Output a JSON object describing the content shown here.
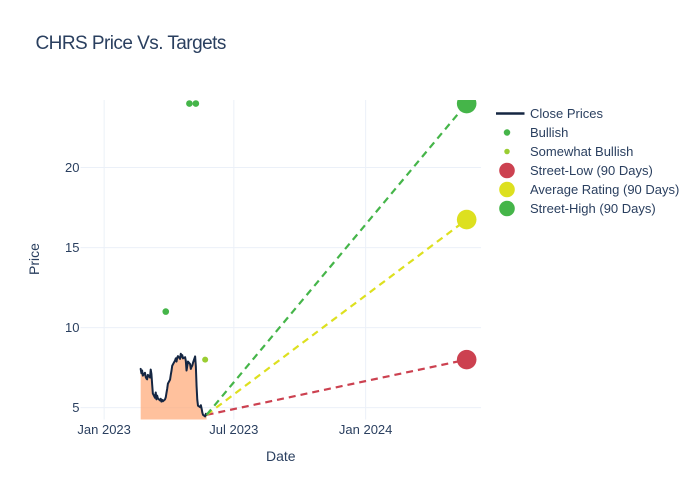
{
  "colors": {
    "background": "#ffffff",
    "text": "#2a3f5f",
    "grid": "#ebf0f8",
    "close_line": "#152642",
    "close_fill": "rgba(255,166,116,0.7)",
    "bullish": "#45b549",
    "somewhat_bullish": "#9acd32",
    "street_low": "#cc4150",
    "average_rating": "#dde01f",
    "street_high": "#45b549"
  },
  "chart_data": {
    "type": "line",
    "title": "CHRS Price Vs. Targets",
    "xlabel": "Date",
    "ylabel": "Price",
    "grid": true,
    "legend_position": "right",
    "x_range": [
      "2022-11-29T12:00:00Z",
      "2024-06-10T12:00:00Z"
    ],
    "y_range": [
      4.26,
      24.22
    ],
    "x_ticks": [
      {
        "label": "Jan 2023",
        "date": "2023-01-01"
      },
      {
        "label": "Jul 2023",
        "date": "2023-07-01"
      },
      {
        "label": "Jan 2024",
        "date": "2024-01-01"
      }
    ],
    "y_ticks": [
      {
        "label": "5",
        "value": 5
      },
      {
        "label": "10",
        "value": 10
      },
      {
        "label": "15",
        "value": 15
      },
      {
        "label": "20",
        "value": 20
      }
    ],
    "series": [
      {
        "name": "Close Prices",
        "kind": "line_filled_area",
        "color_key": "close_line",
        "fill_color_key": "close_fill",
        "line_width": 2,
        "points": [
          [
            "2023-02-21",
            7.42
          ],
          [
            "2023-02-22",
            7.15
          ],
          [
            "2023-02-23",
            7.32
          ],
          [
            "2023-02-24",
            7.0
          ],
          [
            "2023-02-27",
            7.18
          ],
          [
            "2023-02-28",
            6.92
          ],
          [
            "2023-03-01",
            6.82
          ],
          [
            "2023-03-02",
            6.77
          ],
          [
            "2023-03-03",
            7.05
          ],
          [
            "2023-03-06",
            6.88
          ],
          [
            "2023-03-07",
            7.38
          ],
          [
            "2023-03-08",
            7.1
          ],
          [
            "2023-03-09",
            6.45
          ],
          [
            "2023-03-10",
            5.88
          ],
          [
            "2023-03-13",
            5.62
          ],
          [
            "2023-03-14",
            5.95
          ],
          [
            "2023-03-15",
            5.52
          ],
          [
            "2023-03-16",
            5.75
          ],
          [
            "2023-03-17",
            5.58
          ],
          [
            "2023-03-20",
            5.45
          ],
          [
            "2023-03-21",
            5.55
          ],
          [
            "2023-03-22",
            5.38
          ],
          [
            "2023-03-23",
            5.48
          ],
          [
            "2023-03-24",
            5.4
          ],
          [
            "2023-03-27",
            5.52
          ],
          [
            "2023-03-28",
            5.65
          ],
          [
            "2023-03-29",
            5.92
          ],
          [
            "2023-03-30",
            6.18
          ],
          [
            "2023-03-31",
            6.5
          ],
          [
            "2023-04-03",
            6.75
          ],
          [
            "2023-04-04",
            7.05
          ],
          [
            "2023-04-05",
            7.3
          ],
          [
            "2023-04-06",
            7.62
          ],
          [
            "2023-04-10",
            7.95
          ],
          [
            "2023-04-11",
            8.08
          ],
          [
            "2023-04-12",
            7.88
          ],
          [
            "2023-04-13",
            8.12
          ],
          [
            "2023-04-14",
            8.22
          ],
          [
            "2023-04-17",
            8.05
          ],
          [
            "2023-04-18",
            8.37
          ],
          [
            "2023-04-19",
            8.18
          ],
          [
            "2023-04-20",
            8.28
          ],
          [
            "2023-04-21",
            8.08
          ],
          [
            "2023-04-24",
            8.15
          ],
          [
            "2023-04-25",
            7.92
          ],
          [
            "2023-04-26",
            7.32
          ],
          [
            "2023-04-27",
            7.6
          ],
          [
            "2023-04-28",
            7.88
          ],
          [
            "2023-05-01",
            7.72
          ],
          [
            "2023-05-02",
            7.42
          ],
          [
            "2023-05-03",
            7.55
          ],
          [
            "2023-05-04",
            7.62
          ],
          [
            "2023-05-05",
            7.8
          ],
          [
            "2023-05-08",
            8.2
          ],
          [
            "2023-05-09",
            7.58
          ],
          [
            "2023-05-10",
            6.35
          ],
          [
            "2023-05-11",
            5.5
          ],
          [
            "2023-05-12",
            5.12
          ],
          [
            "2023-05-15",
            5.03
          ],
          [
            "2023-05-16",
            5.15
          ],
          [
            "2023-05-17",
            4.95
          ],
          [
            "2023-05-18",
            4.7
          ],
          [
            "2023-05-19",
            4.55
          ],
          [
            "2023-05-22",
            4.45
          ],
          [
            "2023-05-23",
            4.62
          ],
          [
            "2023-05-24",
            4.55
          ]
        ]
      },
      {
        "name": "Bullish",
        "kind": "scatter",
        "color_key": "bullish",
        "marker_size": 6.6,
        "points": [
          [
            "2023-03-28",
            11.0
          ],
          [
            "2023-04-30",
            24.0
          ],
          [
            "2023-05-09",
            24.0
          ]
        ]
      },
      {
        "name": "Somewhat Bullish",
        "kind": "scatter",
        "color_key": "somewhat_bullish",
        "marker_size": 6.0,
        "points": [
          [
            "2023-05-22",
            8.0
          ]
        ]
      },
      {
        "name": "Street-Low (90 Days)",
        "kind": "dashed_target",
        "color_key": "street_low",
        "line_width": 2.2,
        "dash": [
          7,
          5
        ],
        "marker_size": 19.6,
        "points": [
          [
            "2023-05-24",
            4.55
          ],
          [
            "2024-05-21",
            8.0
          ]
        ]
      },
      {
        "name": "Average Rating (90 Days)",
        "kind": "dashed_target",
        "color_key": "average_rating",
        "line_width": 2.2,
        "dash": [
          7,
          5
        ],
        "marker_size": 19.6,
        "points": [
          [
            "2023-05-24",
            4.55
          ],
          [
            "2024-05-21",
            16.75
          ]
        ]
      },
      {
        "name": "Street-High (90 Days)",
        "kind": "dashed_target",
        "color_key": "street_high",
        "line_width": 2.2,
        "dash": [
          7,
          5
        ],
        "marker_size": 19.6,
        "points": [
          [
            "2023-05-24",
            4.55
          ],
          [
            "2024-05-21",
            24.0
          ]
        ]
      }
    ],
    "legend": [
      {
        "label": "Close Prices",
        "marker": "line",
        "color_key": "close_line"
      },
      {
        "label": "Bullish",
        "marker": "dot",
        "size": 6.5,
        "color_key": "bullish"
      },
      {
        "label": "Somewhat Bullish",
        "marker": "dot",
        "size": 5.5,
        "color_key": "somewhat_bullish"
      },
      {
        "label": "Street-Low (90 Days)",
        "marker": "dot",
        "size": 15.6,
        "color_key": "street_low"
      },
      {
        "label": "Average Rating (90 Days)",
        "marker": "dot",
        "size": 15.6,
        "color_key": "average_rating"
      },
      {
        "label": "Street-High (90 Days)",
        "marker": "dot",
        "size": 15.6,
        "color_key": "street_high"
      }
    ]
  }
}
